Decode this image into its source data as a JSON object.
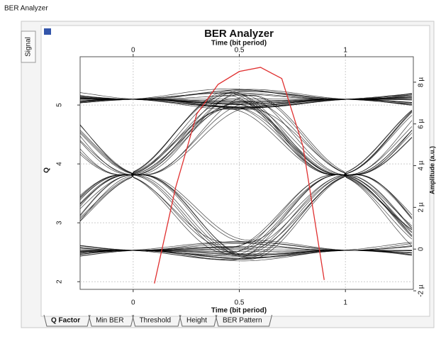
{
  "window_title": "BER Analyzer",
  "side_tab": "Signal",
  "tabs": [
    "Q Factor",
    "Min BER",
    "Threshold",
    "Height",
    "BER Pattern"
  ],
  "chart_data": {
    "type": "line",
    "title": "BER Analyzer",
    "x_label_top": "Time (bit period)",
    "x_label": "Time (bit period)",
    "y_label": "Q",
    "y2_label": "Amplitude (a.u.)",
    "xlim": [
      -0.25,
      1.32
    ],
    "xticks": [
      0,
      0.5,
      1
    ],
    "ylim": [
      1.87,
      5.82
    ],
    "yticks": [
      2,
      3,
      4,
      5
    ],
    "y2lim": [
      -1.93e-06,
      9.22e-06
    ],
    "y2ticks": [
      {
        "value": -2e-06,
        "label": "-2 µ"
      },
      {
        "value": 0,
        "label": "0"
      },
      {
        "value": 2e-06,
        "label": "2 µ"
      },
      {
        "value": 4e-06,
        "label": "4 µ"
      },
      {
        "value": 6e-06,
        "label": "6 µ"
      },
      {
        "value": 8e-06,
        "label": "8 µ"
      }
    ],
    "grid": true,
    "x": [
      0.1,
      0.2,
      0.3,
      0.4,
      0.5,
      0.6,
      0.7,
      0.8,
      0.9
    ],
    "series": [
      {
        "color": "#e03030",
        "values": [
          1.97,
          3.6,
          4.85,
          5.35,
          5.57,
          5.64,
          5.45,
          4.3,
          2.03
        ]
      }
    ]
  }
}
